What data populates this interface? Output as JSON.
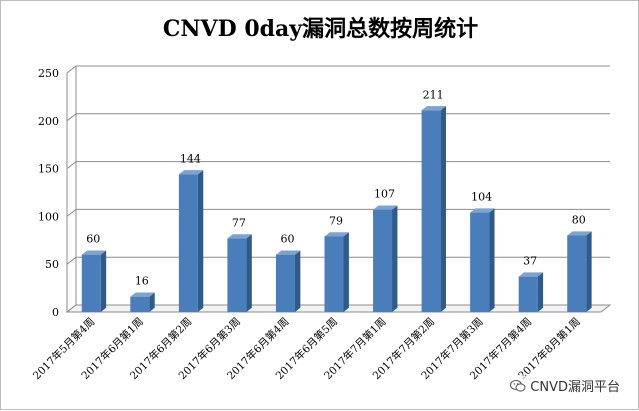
{
  "chart_data": {
    "type": "bar",
    "title": "CNVD 0day漏洞总数按周统计",
    "categories": [
      "2017年5月第4周",
      "2017年6月第1周",
      "2017年6月第2周",
      "2017年6月第3周",
      "2017年6月第4周",
      "2017年6月第5周",
      "2017年7月第1周",
      "2017年7月第2周",
      "2017年7月第3周",
      "2017年7月第4周",
      "2017年8月第1周"
    ],
    "values": [
      60,
      16,
      144,
      77,
      60,
      79,
      107,
      211,
      104,
      37,
      80
    ],
    "ylim": [
      0,
      250
    ],
    "yticks": [
      0,
      50,
      100,
      150,
      200,
      250
    ],
    "grid": true,
    "bar_color": "#4a7ebb",
    "bar_side_color": "#2f5a8c",
    "bar_top_color": "#7aa3d6"
  },
  "watermark": {
    "text": "CNVD漏洞平台",
    "icon": "wechat-icon"
  }
}
